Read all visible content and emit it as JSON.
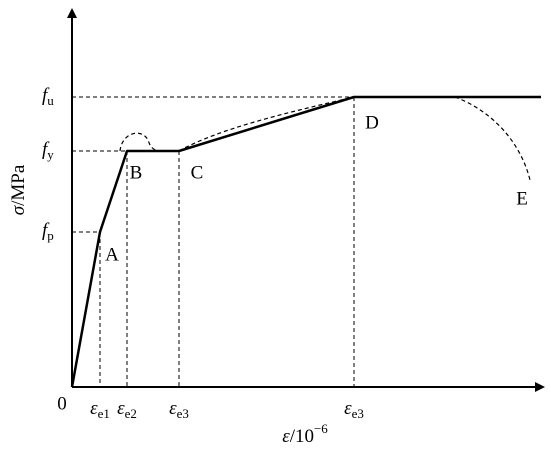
{
  "axes": {
    "y_label": {
      "main": "σ",
      "rest": "/MPa"
    },
    "x_label": {
      "main": "ε",
      "rest": "/10",
      "sup": "−6"
    },
    "origin": "0"
  },
  "y_ticks": [
    {
      "main": "f",
      "sub": "u"
    },
    {
      "main": "f",
      "sub": "y"
    },
    {
      "main": "f",
      "sub": "p"
    }
  ],
  "x_ticks": [
    {
      "main": "ε",
      "sub": "e1"
    },
    {
      "main": "ε",
      "sub": "e2"
    },
    {
      "main": "ε",
      "sub": "e3"
    },
    {
      "main": "ε",
      "sub": "e3"
    }
  ],
  "points": [
    "A",
    "B",
    "C",
    "D",
    "E"
  ]
}
